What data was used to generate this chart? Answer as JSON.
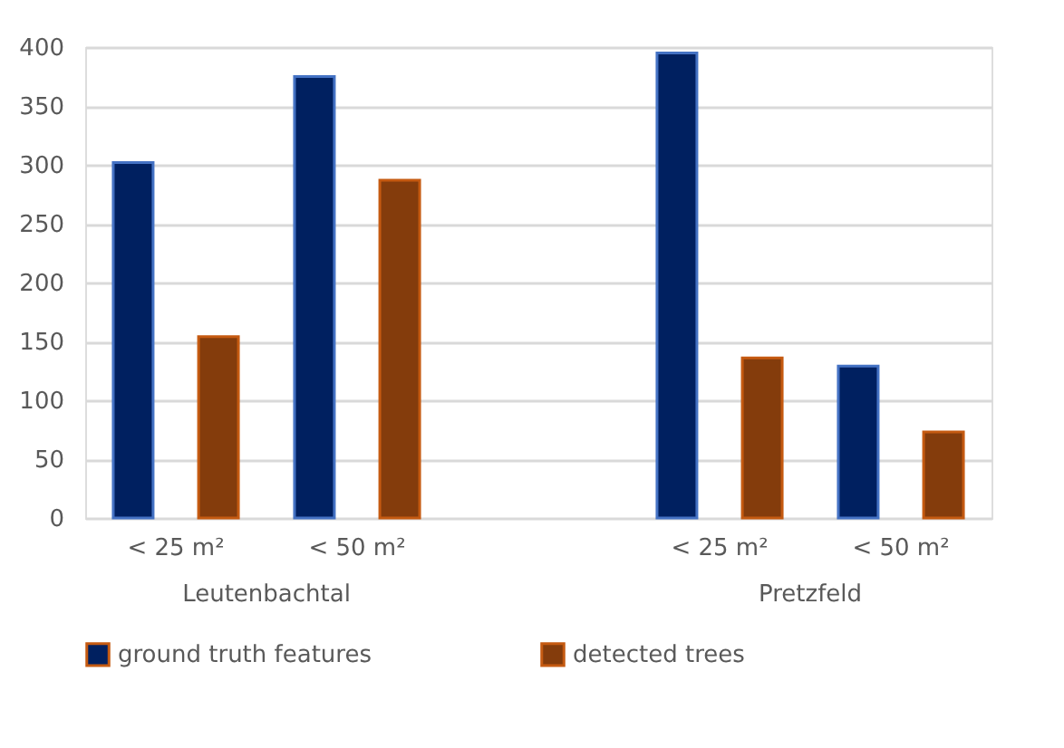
{
  "chart_data": {
    "type": "bar",
    "categories": [
      "< 25 m²",
      "< 50 m²",
      null,
      "< 25 m²",
      "< 50 m²"
    ],
    "series": [
      {
        "name": "ground truth features",
        "color": "#002060",
        "values": [
          302,
          375,
          null,
          395,
          129
        ]
      },
      {
        "name": "detected trees",
        "color": "#843c0c",
        "values": [
          154,
          287,
          null,
          136,
          73
        ]
      }
    ],
    "annotations": [
      "Leutenbachtal",
      "Pretzfeld"
    ],
    "ylim": [
      0,
      400
    ],
    "yticks": [
      0,
      50,
      100,
      150,
      200,
      250,
      300,
      350,
      400
    ],
    "grid": "y",
    "legend": "bottom"
  }
}
